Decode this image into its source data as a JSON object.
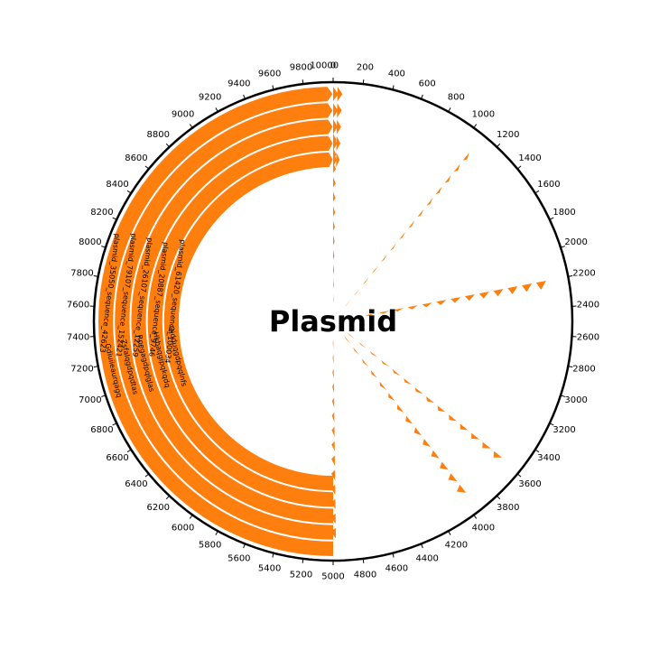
{
  "chart_data": {
    "type": "circular-genome-map",
    "title": "Plasmid",
    "axis": {
      "min": 0,
      "max": 10000,
      "tick_step": 200
    },
    "feature_color": "#ff7f0e",
    "tracks": [
      {
        "name": "plasmid_35050_sequence_42623",
        "label": "plasmid_35050_sequence_42623",
        "sublabel": "Gdiuiieaurqagq",
        "block": [
          5000,
          10000
        ],
        "features": [
          [
            0,
            40
          ],
          [
            5000,
            5100
          ],
          [
            10000,
            40
          ]
        ]
      },
      {
        "name": "plasmid_79107_sequence_152421",
        "label": "plasmid_79107_sequence_152421",
        "sublabel": "Zsfalqgdpqdtas",
        "block": [
          5000,
          10000
        ],
        "features": [
          [
            0,
            40
          ],
          [
            5000,
            5100
          ],
          [
            10000,
            40
          ]
        ]
      },
      {
        "name": "plasmid_26107_sequence_12259",
        "label": "plasmid_26107_sequence_12259",
        "sublabel": "Rpegagdpqlglas",
        "block": [
          5000,
          10000
        ],
        "features": [
          [
            0,
            40
          ],
          [
            5000,
            5100
          ],
          [
            10000,
            40
          ]
        ]
      },
      {
        "name": "plasmid_20887_sequence_9746",
        "label": "plasmid_20887_sequence_9746",
        "sublabel": "Hkbaqgipqkqdq",
        "block": [
          5000,
          10000
        ],
        "features": [
          [
            0,
            40
          ],
          [
            5000,
            5100
          ],
          [
            10000,
            40
          ]
        ]
      },
      {
        "name": "plasmid_61420_sequence_100034",
        "label": "plasmid_61420_sequence_100034",
        "sublabel": "Qjdduqgdpqqlnfs",
        "block": [
          5000,
          10000
        ],
        "features": [
          [
            0,
            40
          ],
          [
            5000,
            5100
          ],
          [
            10000,
            40
          ]
        ]
      }
    ],
    "spokes": [
      {
        "at": 1000,
        "from": 1080,
        "to": 1100
      },
      {
        "at": 2200,
        "from": 2200,
        "to": 2260
      },
      {
        "at": 3600,
        "from": 3580,
        "to": 3620
      },
      {
        "at": 4000,
        "from": 3950,
        "to": 4000
      },
      {
        "at": 0,
        "from": 0,
        "to": 30
      },
      {
        "at": 5000,
        "from": 4980,
        "to": 5020
      }
    ]
  }
}
